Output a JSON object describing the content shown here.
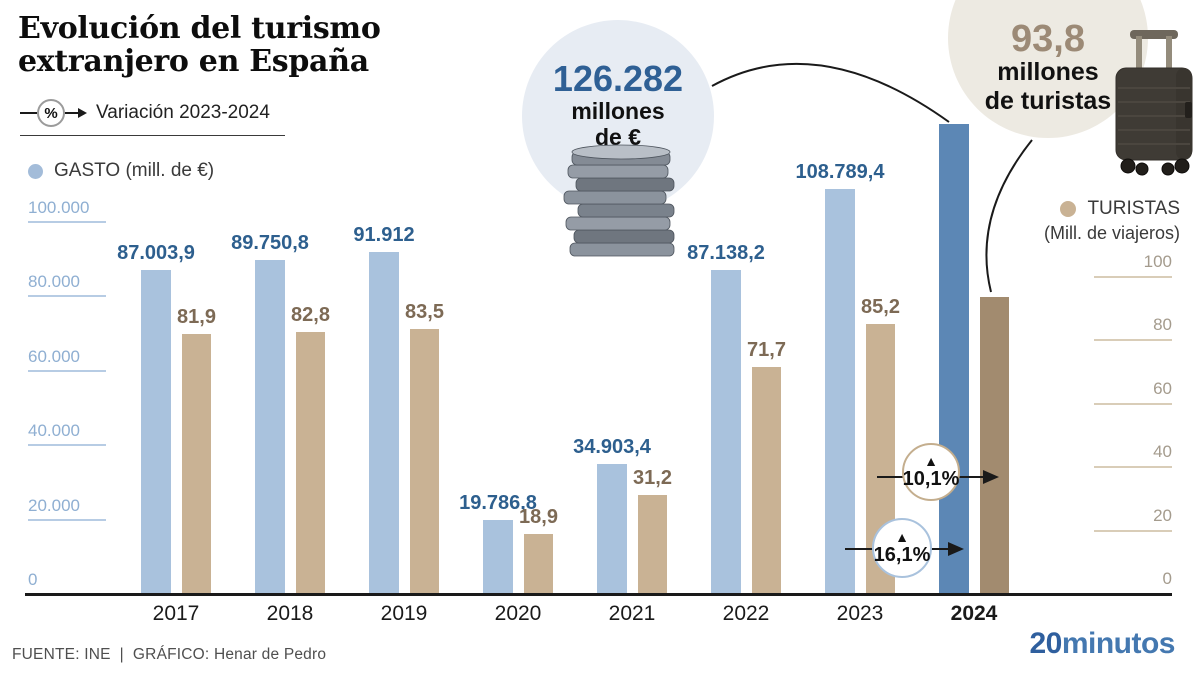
{
  "title": {
    "line1": "Evolución del turismo",
    "line2": "extranjero en España"
  },
  "variation_legend": {
    "symbol": "%",
    "label": "Variación 2023-2024"
  },
  "series_legends": {
    "gasto": {
      "label": "GASTO",
      "unit": "(mill. de €)"
    },
    "turistas": {
      "label": "TURISTAS",
      "unit": "(Mill. de viajeros)"
    }
  },
  "callouts": {
    "gasto": {
      "value": "126.282",
      "caption_line1": "millones",
      "caption_line2": "de €"
    },
    "turistas": {
      "value": "93,8",
      "caption_line1": "millones",
      "caption_line2": "de turistas"
    }
  },
  "variation_badges": [
    {
      "applies_to": "turistas",
      "arrow": "▲",
      "value": "10,1%"
    },
    {
      "applies_to": "gasto",
      "arrow": "▲",
      "value": "16,1%"
    }
  ],
  "footer": {
    "source": "FUENTE: INE",
    "separator": "|",
    "credit": "GRÁFICO: Henar de Pedro"
  },
  "brand": {
    "bold": "20",
    "regular": "minutos"
  },
  "colors": {
    "gasto_bar": "#a9c2dd",
    "gasto_bar_highlight": "#5c87b5",
    "gasto_label_text": "#2d5f8e",
    "turistas_bar": "#c9b294",
    "turistas_bar_highlight": "#a28b6f",
    "turistas_label_text": "#7d6a55",
    "left_axis_text": "#8fafd2",
    "left_axis_tick": "#b7cce4",
    "right_axis_text": "#a49b8d",
    "right_axis_tick": "#d9cdb8",
    "callout_gasto_bg": "#e7ecf3",
    "callout_turistas_bg": "#edeae2",
    "connector_line": "#1a1a1a",
    "brand_blue": "#2f5f9e"
  },
  "chart_data": {
    "type": "bar",
    "title": "Evolución del turismo extranjero en España",
    "categories": [
      "2017",
      "2018",
      "2019",
      "2020",
      "2021",
      "2022",
      "2023",
      "2024"
    ],
    "highlight_category": "2024",
    "series": [
      {
        "name": "GASTO (mill. de €)",
        "axis": "left",
        "values": [
          87003.9,
          89750.8,
          91912,
          19786.8,
          34903.4,
          87138.2,
          108789.4,
          126282
        ],
        "labels": [
          "87.003,9",
          "89.750,8",
          "91.912",
          "19.786,8",
          "34.903,4",
          "87.138,2",
          "108.789,4",
          "126.282"
        ],
        "color": "#a9c2dd",
        "highlight_color": "#5c87b5",
        "label_color": "#2d5f8e"
      },
      {
        "name": "TURISTAS (Mill. de viajeros)",
        "axis": "right",
        "values": [
          81.9,
          82.8,
          83.5,
          18.9,
          31.2,
          71.7,
          85.2,
          93.8
        ],
        "labels": [
          "81,9",
          "82,8",
          "83,5",
          "18,9",
          "31,2",
          "71,7",
          "85,2",
          "93,8"
        ],
        "color": "#c9b294",
        "highlight_color": "#a28b6f",
        "label_color": "#7d6a55"
      }
    ],
    "left_axis": {
      "max": 100000,
      "ticks": [
        100000,
        80000,
        60000,
        40000,
        20000,
        0
      ],
      "tick_labels": [
        "100.000",
        "80.000",
        "60.000",
        "40.000",
        "20.000",
        "0"
      ]
    },
    "right_axis": {
      "max": 100,
      "ticks": [
        100,
        80,
        60,
        40,
        20,
        0
      ],
      "tick_labels": [
        "100",
        "80",
        "60",
        "40",
        "20",
        "0"
      ]
    },
    "grid": false,
    "legend_position": "top-left and right",
    "variation_2023_2024": {
      "gasto_pct": "16,1%",
      "turistas_pct": "10,1%"
    }
  }
}
